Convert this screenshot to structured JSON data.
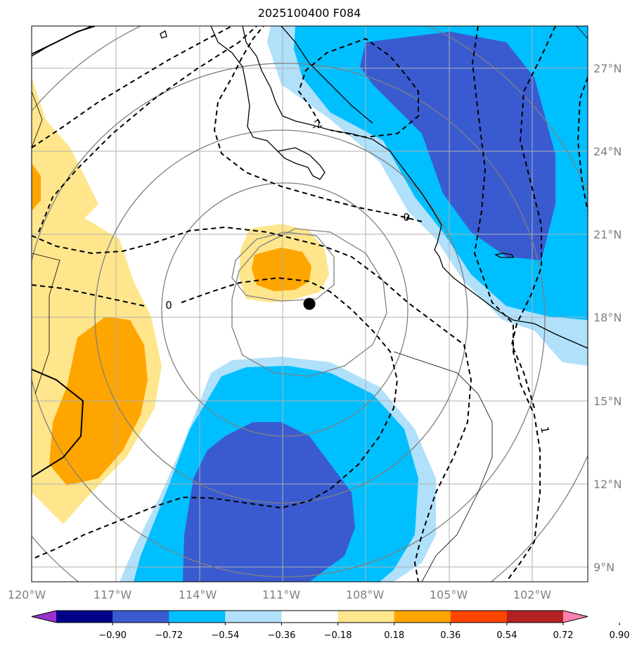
{
  "title": "2025100400 F084",
  "map": {
    "lon_ticks": [
      "120°W",
      "117°W",
      "114°W",
      "111°W",
      "108°W",
      "105°W",
      "102°W"
    ],
    "lat_ticks": [
      "27°N",
      "24°N",
      "21°N",
      "18°N",
      "15°N",
      "12°N",
      "9°N"
    ],
    "contour_labels": [
      "0",
      "-2",
      "0",
      "1"
    ],
    "storm_marker": "black-dot"
  },
  "colorbar": {
    "labels": [
      "−0.90",
      "−0.72",
      "−0.54",
      "−0.36",
      "−0.18",
      "0.18",
      "0.36",
      "0.54",
      "0.72",
      "0.90"
    ],
    "colors": [
      "#9932cc",
      "#00008b",
      "#3a5bd0",
      "#00bfff",
      "#b0e0fa",
      "#ffffff",
      "#ffe68c",
      "#ffa500",
      "#ff4500",
      "#b22222",
      "#ff80b4"
    ],
    "extend": "both"
  }
}
